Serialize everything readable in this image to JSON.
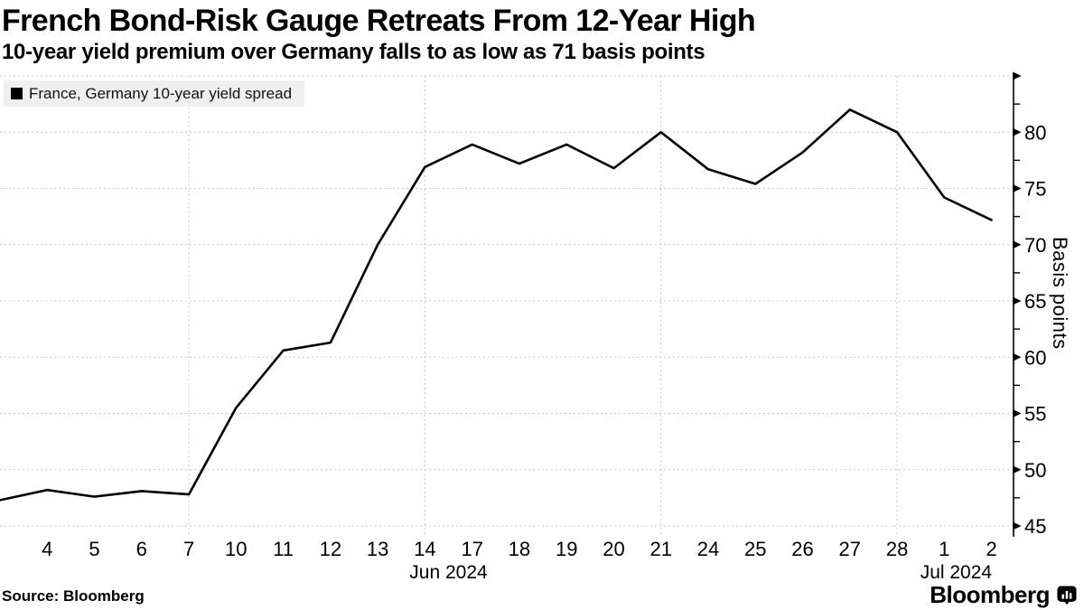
{
  "header": {
    "title": "French Bond-Risk Gauge Retreats From 12-Year High",
    "subtitle": "10-year yield premium over Germany falls to as low as 71 basis points"
  },
  "legend": {
    "swatch_icon": "black-square",
    "label": "France, Germany 10-year yield spread"
  },
  "footer": {
    "source": "Source: Bloomberg",
    "brand": "Bloomberg",
    "brand_icon": "bloomberg-terminal-icon"
  },
  "colors": {
    "line": "#000000",
    "gridline": "#c9c9c9",
    "legend_background": "#efefef",
    "text": "#000000"
  },
  "chart_data": {
    "type": "line",
    "title": "French Bond-Risk Gauge Retreats From 12-Year High",
    "subtitle": "10-year yield premium over Germany falls to as low as 71 basis points",
    "ylabel": "Basis points",
    "ylim": [
      45,
      85
    ],
    "y_ticks": [
      45,
      50,
      55,
      60,
      65,
      70,
      75,
      80
    ],
    "y_minor_tick_step": 2.5,
    "grid": "dashed",
    "legend_position": "top-left",
    "y_axis_side": "right",
    "categories": [
      "Jun 3",
      "Jun 4",
      "Jun 5",
      "Jun 6",
      "Jun 7",
      "Jun 10",
      "Jun 11",
      "Jun 12",
      "Jun 13",
      "Jun 14",
      "Jun 17",
      "Jun 18",
      "Jun 19",
      "Jun 20",
      "Jun 21",
      "Jun 24",
      "Jun 25",
      "Jun 26",
      "Jun 27",
      "Jun 28",
      "Jul 1",
      "Jul 2"
    ],
    "x_tick_labels": [
      "",
      "4",
      "5",
      "6",
      "7",
      "10",
      "11",
      "12",
      "13",
      "14",
      "17",
      "18",
      "19",
      "20",
      "21",
      "24",
      "25",
      "26",
      "27",
      "28",
      "1",
      "2"
    ],
    "week_boundary_gridline_indices": [
      4,
      9,
      14,
      19
    ],
    "month_captions": [
      {
        "text": "Jun 2024",
        "center_index": 9.5
      },
      {
        "text": "Jul 2024",
        "center_index": 20.25
      }
    ],
    "series": [
      {
        "name": "France, Germany 10-year yield spread",
        "color": "#000000",
        "values": [
          47.3,
          48.2,
          47.6,
          48.1,
          47.8,
          55.5,
          60.6,
          61.3,
          70.0,
          76.9,
          78.9,
          77.2,
          78.9,
          76.8,
          80.0,
          76.7,
          75.4,
          78.2,
          82.0,
          80.0,
          74.2,
          72.2
        ]
      }
    ]
  }
}
